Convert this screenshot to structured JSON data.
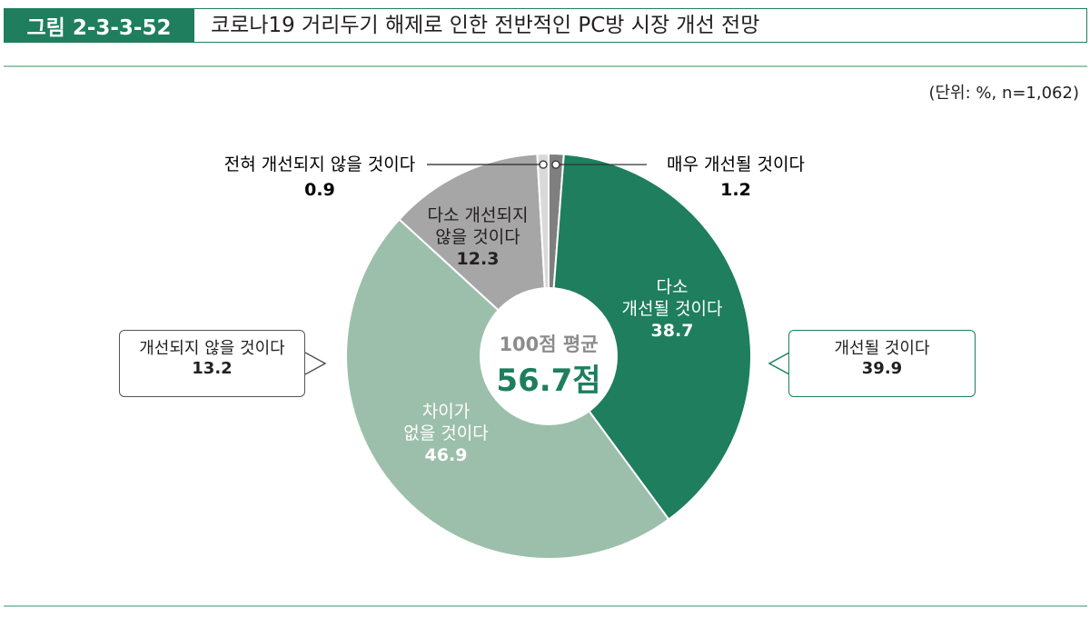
{
  "figure": {
    "label": "그림 2-3-3-52",
    "title": "코로나19 거리두기 해제로 인한 전반적인 PC방 시장 개선 전망",
    "unit_note": "(단위: %, n=1,062)"
  },
  "center": {
    "caption": "100점 평균",
    "value": "56.7점"
  },
  "callouts": {
    "negative": {
      "label": "개선되지 않을 것이다",
      "value": "13.2"
    },
    "positive": {
      "label": "개선될 것이다",
      "value": "39.9"
    }
  },
  "colors": {
    "accent": "#1e7e5e",
    "very_improve": "#7f7f7f",
    "improve": "#1e7e5e",
    "no_diff": "#9cbfab",
    "not_improve": "#a6a6a6",
    "not_at_all": "#d9d9d9"
  },
  "chart_data": {
    "type": "pie",
    "donut": true,
    "start_angle_deg": 0,
    "slices": [
      {
        "label": "매우 개선될 것이다",
        "value": 1.2,
        "display": "1.2",
        "color_key": "very_improve",
        "label_lines": [
          "매우 개선될 것이다"
        ],
        "label_style": "outside-right"
      },
      {
        "label": "다소 개선될 것이다",
        "value": 38.7,
        "display": "38.7",
        "color_key": "improve",
        "label_lines": [
          "다소",
          "개선될 것이다"
        ],
        "label_style": "inside-light"
      },
      {
        "label": "차이가 없을 것이다",
        "value": 46.9,
        "display": "46.9",
        "color_key": "no_diff",
        "label_lines": [
          "차이가",
          "없을 것이다"
        ],
        "label_style": "inside-light"
      },
      {
        "label": "다소 개선되지 않을 것이다",
        "value": 12.3,
        "display": "12.3",
        "color_key": "not_improve",
        "label_lines": [
          "다소 개선되지",
          "않을 것이다"
        ],
        "label_style": "inside-dark"
      },
      {
        "label": "전혀 개선되지 않을 것이다",
        "value": 0.9,
        "display": "0.9",
        "color_key": "not_at_all",
        "label_lines": [
          "전혀 개선되지 않을 것이다"
        ],
        "label_style": "outside-left"
      }
    ]
  }
}
